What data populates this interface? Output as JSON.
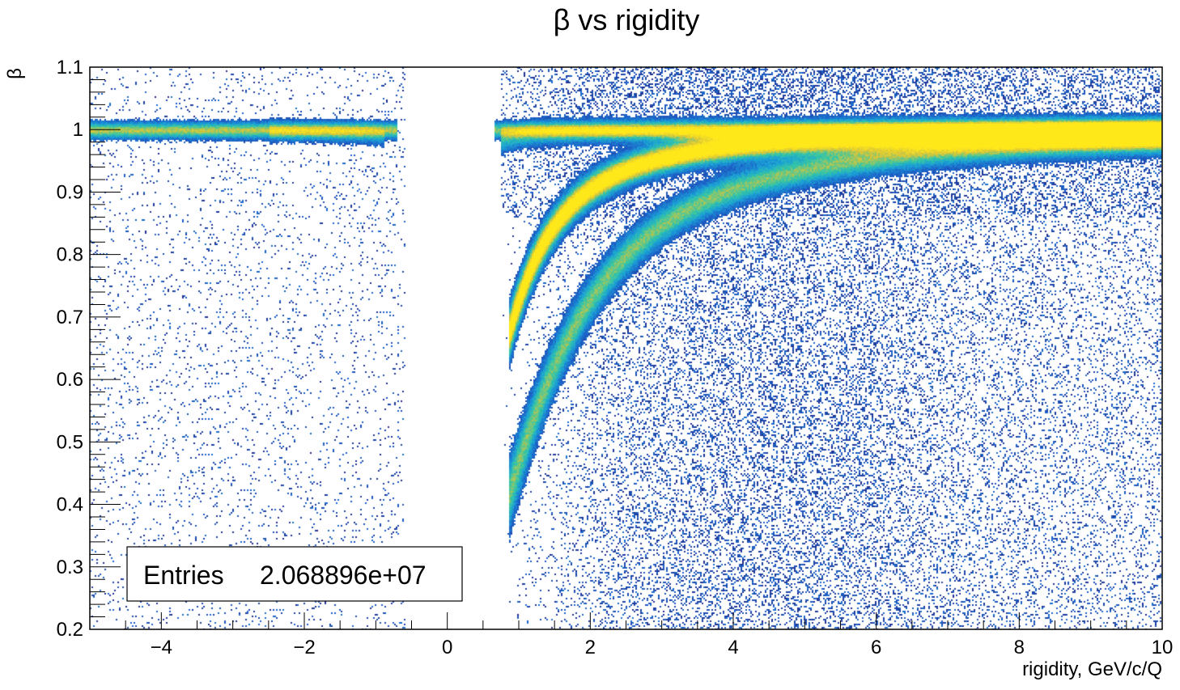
{
  "chart_data": {
    "type": "heatmap",
    "title": "β vs rigidity",
    "xlabel": "rigidity, GeV/c/Q",
    "ylabel": "β",
    "xlim": [
      -5,
      10
    ],
    "ylim": [
      0.2,
      1.1
    ],
    "x_ticks": [
      -4,
      -2,
      0,
      2,
      4,
      6,
      8,
      10
    ],
    "x_tick_labels": [
      "−4",
      "−2",
      "0",
      "2",
      "4",
      "6",
      "8",
      "10"
    ],
    "y_ticks": [
      0.2,
      0.3,
      0.4,
      0.5,
      0.6,
      0.7,
      0.8,
      0.9,
      1.0,
      1.1
    ],
    "y_tick_labels": [
      "0.2",
      "0.3",
      "0.4",
      "0.5",
      "0.6",
      "0.7",
      "0.8",
      "0.9",
      "1",
      "1.1"
    ],
    "grid": false,
    "colormap": [
      "#1f2e8c",
      "#1d60c8",
      "#1aa0d6",
      "#35c6a6",
      "#d8c63a",
      "#ffe81a"
    ],
    "bands": [
      {
        "mass": 0.000511,
        "xmin": -5.0,
        "xmax": -0.7,
        "sign": -1,
        "peak": 0.62,
        "width": 0.008
      },
      {
        "mass": 0.14,
        "xmin": -2.5,
        "xmax": -0.9,
        "sign": -1,
        "peak": 0.18,
        "width": 0.01
      },
      {
        "mass": 0.000511,
        "xmin": 0.65,
        "xmax": 10.0,
        "sign": 1,
        "peak": 0.55,
        "width": 0.008
      },
      {
        "mass": 0.14,
        "xmin": 0.75,
        "xmax": 10.0,
        "sign": 1,
        "peak": 0.35,
        "width": 0.012
      },
      {
        "mass": 0.938,
        "xmin": 0.85,
        "xmax": 10.0,
        "sign": 1,
        "peak": 1.0,
        "width": 0.013
      },
      {
        "mass": 1.876,
        "xmin": 0.85,
        "xmax": 10.0,
        "sign": 1,
        "peak": 0.55,
        "width": 0.013
      }
    ],
    "stats": {
      "label": "Entries",
      "value": "2.068896e+07",
      "position": "bottom-left"
    }
  }
}
